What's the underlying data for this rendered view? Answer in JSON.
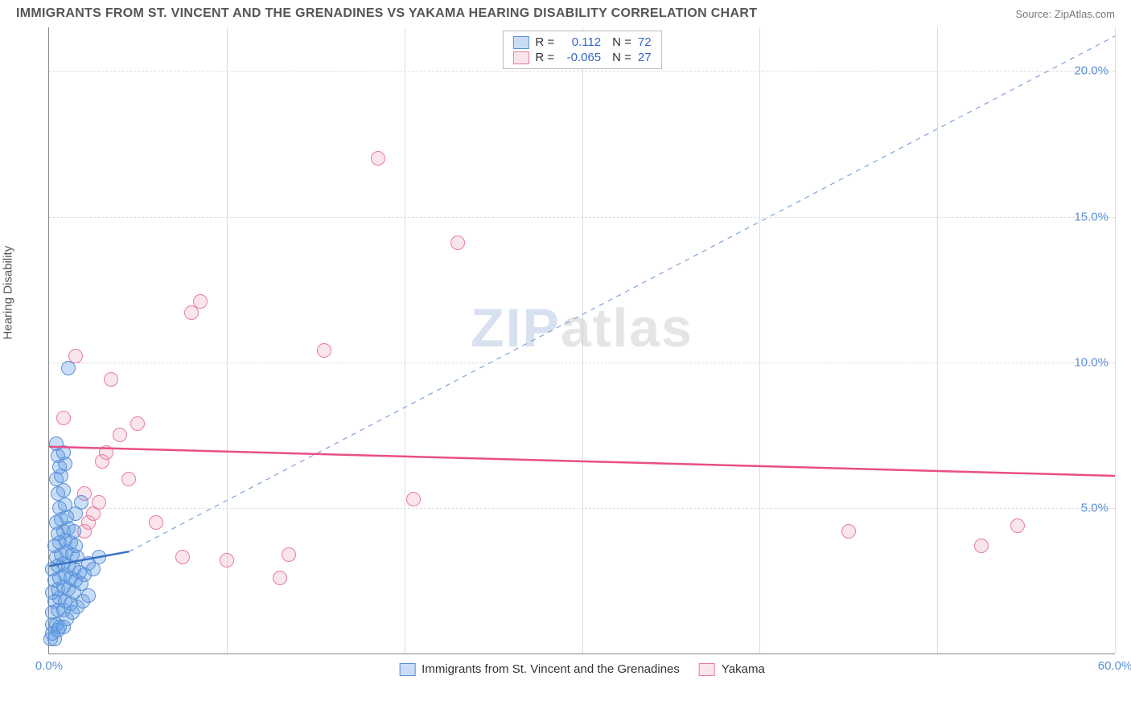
{
  "header": {
    "title": "IMMIGRANTS FROM ST. VINCENT AND THE GRENADINES VS YAKAMA HEARING DISABILITY CORRELATION CHART",
    "source": "Source: ZipAtlas.com"
  },
  "chart": {
    "type": "scatter",
    "ylabel": "Hearing Disability",
    "background_color": "#ffffff",
    "grid_color": "#dddddd",
    "axis_color": "#888888",
    "tick_label_color": "#5b8fd6",
    "tick_fontsize": 15,
    "label_fontsize": 15,
    "label_color": "#555555",
    "xlim": [
      0,
      60
    ],
    "ylim": [
      0,
      21.5
    ],
    "xticks": [
      0.0,
      60.0
    ],
    "xtick_labels": [
      "0.0%",
      "60.0%"
    ],
    "xgrid_positions": [
      10,
      20,
      30,
      40,
      50,
      60
    ],
    "yticks": [
      5.0,
      10.0,
      15.0,
      20.0
    ],
    "ytick_labels": [
      "5.0%",
      "10.0%",
      "15.0%",
      "20.0%"
    ],
    "marker_radius": 9,
    "series": [
      {
        "name": "Immigrants from St. Vincent and the Grenadines",
        "color_fill": "rgba(100,160,230,0.35)",
        "color_stroke": "#5b8fd6",
        "r_label": "R =",
        "r_value": "0.112",
        "n_label": "N =",
        "n_value": "72",
        "trend": {
          "x1": 0,
          "y1": 3.0,
          "x2": 4.5,
          "y2": 3.5,
          "width": 2.5,
          "style": "solid",
          "color": "#3a6fc4",
          "ext_x2": 60,
          "ext_y2": 21.2,
          "ext_style": "dashed",
          "ext_width": 1.2,
          "ext_color": "#7ba3dc"
        },
        "points": [
          [
            0.1,
            0.5
          ],
          [
            0.3,
            0.5
          ],
          [
            0.2,
            1.0
          ],
          [
            0.4,
            1.0
          ],
          [
            0.6,
            0.9
          ],
          [
            0.2,
            1.4
          ],
          [
            0.5,
            1.5
          ],
          [
            0.8,
            1.5
          ],
          [
            0.3,
            1.8
          ],
          [
            0.6,
            1.9
          ],
          [
            0.9,
            1.8
          ],
          [
            1.2,
            1.7
          ],
          [
            0.2,
            2.1
          ],
          [
            0.5,
            2.2
          ],
          [
            0.8,
            2.3
          ],
          [
            1.1,
            2.2
          ],
          [
            1.4,
            2.1
          ],
          [
            0.3,
            2.5
          ],
          [
            0.6,
            2.6
          ],
          [
            0.9,
            2.7
          ],
          [
            1.2,
            2.6
          ],
          [
            1.5,
            2.5
          ],
          [
            1.8,
            2.4
          ],
          [
            0.2,
            2.9
          ],
          [
            0.5,
            3.0
          ],
          [
            0.8,
            3.1
          ],
          [
            1.1,
            3.0
          ],
          [
            1.4,
            2.9
          ],
          [
            1.7,
            2.8
          ],
          [
            2.0,
            2.7
          ],
          [
            0.4,
            3.3
          ],
          [
            0.7,
            3.4
          ],
          [
            1.0,
            3.5
          ],
          [
            1.3,
            3.4
          ],
          [
            1.6,
            3.3
          ],
          [
            2.2,
            3.1
          ],
          [
            2.5,
            2.9
          ],
          [
            0.3,
            3.7
          ],
          [
            0.6,
            3.8
          ],
          [
            0.9,
            3.9
          ],
          [
            1.2,
            3.8
          ],
          [
            1.5,
            3.7
          ],
          [
            2.8,
            3.3
          ],
          [
            0.5,
            4.1
          ],
          [
            0.8,
            4.2
          ],
          [
            1.1,
            4.3
          ],
          [
            1.4,
            4.2
          ],
          [
            0.4,
            4.5
          ],
          [
            0.7,
            4.6
          ],
          [
            1.0,
            4.7
          ],
          [
            0.6,
            5.0
          ],
          [
            0.9,
            5.1
          ],
          [
            0.5,
            5.5
          ],
          [
            0.8,
            5.6
          ],
          [
            0.4,
            6.0
          ],
          [
            0.7,
            6.1
          ],
          [
            0.6,
            6.4
          ],
          [
            0.9,
            6.5
          ],
          [
            0.5,
            6.8
          ],
          [
            0.8,
            6.9
          ],
          [
            0.4,
            7.2
          ],
          [
            1.1,
            9.8
          ],
          [
            1.0,
            1.2
          ],
          [
            1.3,
            1.4
          ],
          [
            1.6,
            1.6
          ],
          [
            1.9,
            1.8
          ],
          [
            2.2,
            2.0
          ],
          [
            0.2,
            0.7
          ],
          [
            0.5,
            0.8
          ],
          [
            0.8,
            0.9
          ],
          [
            1.5,
            4.8
          ],
          [
            1.8,
            5.2
          ]
        ]
      },
      {
        "name": "Yakama",
        "color_fill": "rgba(240,150,180,0.25)",
        "color_stroke": "#e77ca3",
        "r_label": "R =",
        "r_value": "-0.065",
        "n_label": "N =",
        "n_value": "27",
        "trend": {
          "x1": 0,
          "y1": 7.1,
          "x2": 60,
          "y2": 6.1,
          "width": 2.5,
          "style": "solid",
          "color": "#e94e87"
        },
        "points": [
          [
            0.8,
            8.1
          ],
          [
            1.5,
            10.2
          ],
          [
            2.0,
            4.2
          ],
          [
            2.2,
            4.5
          ],
          [
            2.5,
            4.8
          ],
          [
            2.8,
            5.2
          ],
          [
            3.0,
            6.6
          ],
          [
            3.2,
            6.9
          ],
          [
            3.5,
            9.4
          ],
          [
            4.0,
            7.5
          ],
          [
            4.5,
            6.0
          ],
          [
            5.0,
            7.9
          ],
          [
            6.0,
            4.5
          ],
          [
            7.5,
            3.3
          ],
          [
            8.0,
            11.7
          ],
          [
            8.5,
            12.1
          ],
          [
            10.0,
            3.2
          ],
          [
            13.0,
            2.6
          ],
          [
            13.5,
            3.4
          ],
          [
            15.5,
            10.4
          ],
          [
            18.5,
            17.0
          ],
          [
            20.5,
            5.3
          ],
          [
            23.0,
            14.1
          ],
          [
            45.0,
            4.2
          ],
          [
            52.5,
            3.7
          ],
          [
            54.5,
            4.4
          ],
          [
            2.0,
            5.5
          ]
        ]
      }
    ],
    "legend_bottom": [
      {
        "swatch_fill": "rgba(100,160,230,0.35)",
        "swatch_stroke": "#5b8fd6",
        "label": "Immigrants from St. Vincent and the Grenadines"
      },
      {
        "swatch_fill": "rgba(240,150,180,0.25)",
        "swatch_stroke": "#e77ca3",
        "label": "Yakama"
      }
    ],
    "watermark": {
      "part1": "ZIP",
      "part2": "atlas"
    }
  }
}
